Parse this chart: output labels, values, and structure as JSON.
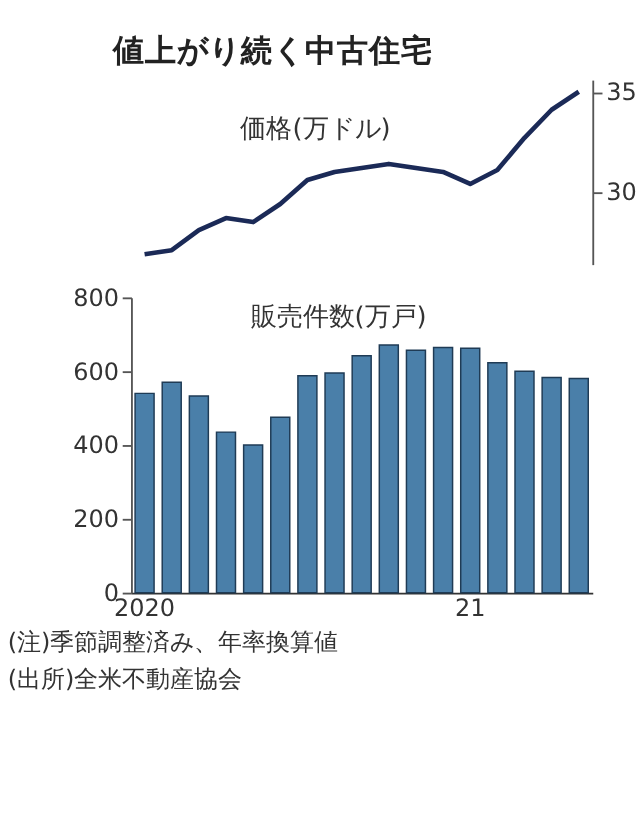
{
  "chart_data": [
    {
      "type": "line",
      "title": "値上がり続く中古住宅",
      "ylabel": "価格(万ドル)",
      "categories": [
        "2020",
        null,
        null,
        null,
        null,
        null,
        null,
        null,
        null,
        null,
        null,
        null,
        "21",
        null,
        null,
        null,
        null
      ],
      "values": [
        26.9,
        27.1,
        28.1,
        28.7,
        28.5,
        29.4,
        30.6,
        31.0,
        31.2,
        31.4,
        31.2,
        31.0,
        30.4,
        31.1,
        32.7,
        34.1,
        35.0
      ],
      "color": "#1b2a57",
      "ylim": [
        26.4,
        35.6
      ],
      "yticks": [
        30,
        35
      ],
      "grid": false,
      "tick_labels": "y"
    },
    {
      "type": "bar",
      "ylabel": "販売件数(万戸)",
      "categories": [
        "2020",
        null,
        null,
        null,
        null,
        null,
        null,
        null,
        null,
        null,
        null,
        null,
        "21",
        null,
        null,
        null,
        null
      ],
      "values": [
        540,
        570,
        533,
        435,
        400,
        475,
        588,
        595,
        642,
        671,
        657,
        664,
        662,
        623,
        600,
        583,
        580
      ],
      "color": "#4a7fa9",
      "ylim": [
        0,
        800
      ],
      "yticks": [
        0,
        200,
        400,
        600,
        800
      ],
      "grid": false,
      "annotations": [
        "(注)季節調整済み、年率換算値",
        "(出所)全米不動産協会"
      ]
    }
  ]
}
